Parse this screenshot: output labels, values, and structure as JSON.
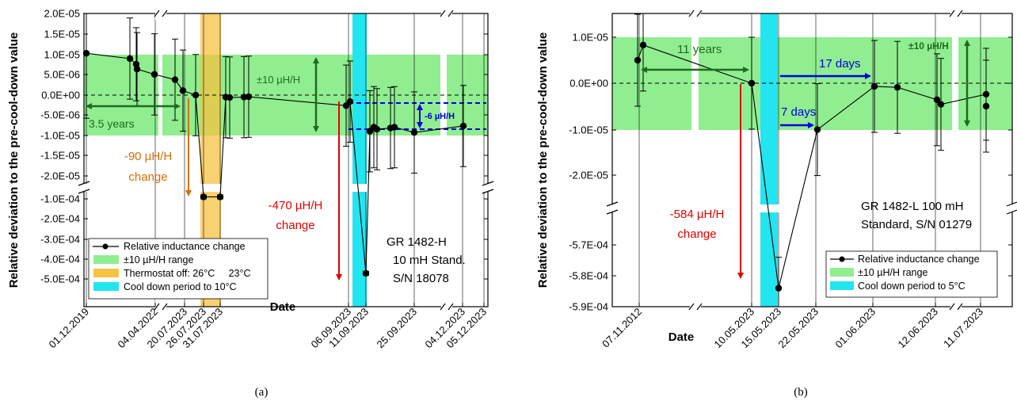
{
  "chart_data": [
    {
      "type": "scatter",
      "panel_caption": "(a)",
      "xlabel": "Date",
      "ylabel": "Relative deviation to the pre-cool-down value",
      "y_upper_range": [
        -2.5e-05,
        2e-05
      ],
      "y_lower_range": [
        -0.00055,
        -5e-05
      ],
      "y_ticks_upper": [
        "2.0E-05",
        "1.5E-05",
        "1.0E-05",
        "5.0E-06",
        "0.0E+00",
        "-5.0E-06",
        "-1.0E-05",
        "-1.5E-05",
        "-2.0E-05"
      ],
      "y_ticks_lower": [
        "-1.0E-04",
        "-2.0E-04",
        "-3.0E-04",
        "-4.0E-04",
        "-5.0E-04"
      ],
      "x_tick_labels": [
        "01.12.2019",
        "04.04.2022",
        "20.07.2023",
        "26.07.2023",
        "31.07.2023",
        "06.09.2023",
        "11.09.2023",
        "25.09.2023",
        "04.12.2023",
        "05.12.2023"
      ],
      "series": [
        {
          "name": "Relative inductance change",
          "points": [
            {
              "date": "01.12.2019",
              "y": 1.02e-05,
              "err": 1.6e-05
            },
            {
              "date": "2022",
              "y": 8.9e-06,
              "err": 1e-05
            },
            {
              "date": "2022",
              "y": 7.5e-06,
              "err": 9e-06
            },
            {
              "date": "2022",
              "y": 6.3e-06,
              "err": 9e-06
            },
            {
              "date": "04.04.2022",
              "y": 5e-06,
              "err": 1e-05
            },
            {
              "date": "20.07.2023",
              "y": 3.7e-06,
              "err": 1e-05
            },
            {
              "date": "2023",
              "y": 1e-06,
              "err": 1e-05
            },
            {
              "date": "2023",
              "y": -1e-07,
              "err": 1e-05
            },
            {
              "date": "26.07.2023",
              "y": -9e-05,
              "err": 1e-05
            },
            {
              "date": "31.07.2023",
              "y": -9e-05,
              "err": 1e-05
            },
            {
              "date": "2023",
              "y": -6e-07,
              "err": 1e-05
            },
            {
              "date": "2023",
              "y": -7e-07,
              "err": 1e-05
            },
            {
              "date": "2023",
              "y": -6e-07,
              "err": 1e-05
            },
            {
              "date": "2023",
              "y": -5e-07,
              "err": 1e-05
            },
            {
              "date": "06.09.2023",
              "y": -2.7e-06,
              "err": 1e-05
            },
            {
              "date": "06.09.2023",
              "y": -1.7e-06,
              "err": 1e-05
            },
            {
              "date": "11.09.2023",
              "y": -0.000472,
              "err": 1e-05
            },
            {
              "date": "2023",
              "y": -9e-06,
              "err": 1e-05
            },
            {
              "date": "2023",
              "y": -8e-06,
              "err": 1e-05
            },
            {
              "date": "2023",
              "y": -8.5e-06,
              "err": 1e-05
            },
            {
              "date": "2023",
              "y": -8.2e-06,
              "err": 1e-05
            },
            {
              "date": "2023",
              "y": -8e-06,
              "err": 1e-05
            },
            {
              "date": "25.09.2023",
              "y": -9.3e-06,
              "err": 1e-05
            },
            {
              "date": "04.12.2023",
              "y": -7.7e-06,
              "err": 1e-05
            }
          ]
        },
        {
          "name": "±10 µH/H range"
        },
        {
          "name": "Thermostat off: 26°C     23°C"
        },
        {
          "name": "Cool down period to 10°C"
        }
      ],
      "annotations": [
        "3.5 years",
        "-90 µH/H",
        "change",
        "-470 µH/H",
        "change",
        "±10 µH/H",
        "-6 µH/H",
        "GR 1482-H",
        "10 mH Stand.",
        "S/N 18078"
      ]
    },
    {
      "type": "scatter",
      "panel_caption": "(b)",
      "xlabel": "Date",
      "ylabel": "Relative deviation to the pre-cool-down value",
      "y_upper_range": [
        -2.5e-05,
        1.5e-05
      ],
      "y_lower_range": [
        -0.00059,
        -0.00056
      ],
      "y_ticks_upper": [
        "1.0E-05",
        "0.0E+00",
        "-1.0E-05",
        "-2.0E-05"
      ],
      "y_ticks_lower": [
        "-5.7E-04",
        "-5.8E-04",
        "-5.9E-04"
      ],
      "x_tick_labels": [
        "07.11.2012",
        "10.05.2023",
        "15.05.2023",
        "22.05.2023",
        "01.06.2023",
        "12.06.2023",
        "11.07.2023"
      ],
      "series": [
        {
          "name": "Relative inductance change",
          "points": [
            {
              "date": "07.11.2012",
              "y": 5e-06,
              "err": 1e-05
            },
            {
              "date": "07.11.2012",
              "y": 8.3e-06,
              "err": 1e-05
            },
            {
              "date": "10.05.2023",
              "y": 0.0,
              "err": 1e-05
            },
            {
              "date": "15.05.2023",
              "y": -0.000584,
              "err": 1e-05
            },
            {
              "date": "22.05.2023",
              "y": -1.01e-05,
              "err": 1e-05
            },
            {
              "date": "01.06.2023",
              "y": -7e-07,
              "err": 1e-05
            },
            {
              "date": "2023",
              "y": -9e-07,
              "err": 1e-05
            },
            {
              "date": "12.06.2023",
              "y": -3.6e-06,
              "err": 1e-05
            },
            {
              "date": "12.06.2023",
              "y": -4.6e-06,
              "err": 1e-05
            },
            {
              "date": "11.07.2023",
              "y": -2.4e-06,
              "err": 1e-05
            },
            {
              "date": "11.07.2023",
              "y": -5e-06,
              "err": 1e-05
            }
          ]
        },
        {
          "name": "±10 µH/H range"
        },
        {
          "name": "Cool down period to 5°C"
        }
      ],
      "annotations": [
        "11 years",
        "17 days",
        "7 days",
        "±10 µH/H",
        "-584 µH/H",
        "change",
        "GR 1482-L 100 mH",
        "Standard, S/N 01279"
      ]
    }
  ],
  "colors": {
    "band_green": "#90ee90",
    "thermostat": "#f5c242",
    "cooldown": "#22e5f0",
    "arrow_green": "#1f6b1f",
    "arrow_red": "#e00000",
    "arrow_orange": "#d66f00",
    "arrow_blue": "#0000e0",
    "data": "#000000"
  }
}
